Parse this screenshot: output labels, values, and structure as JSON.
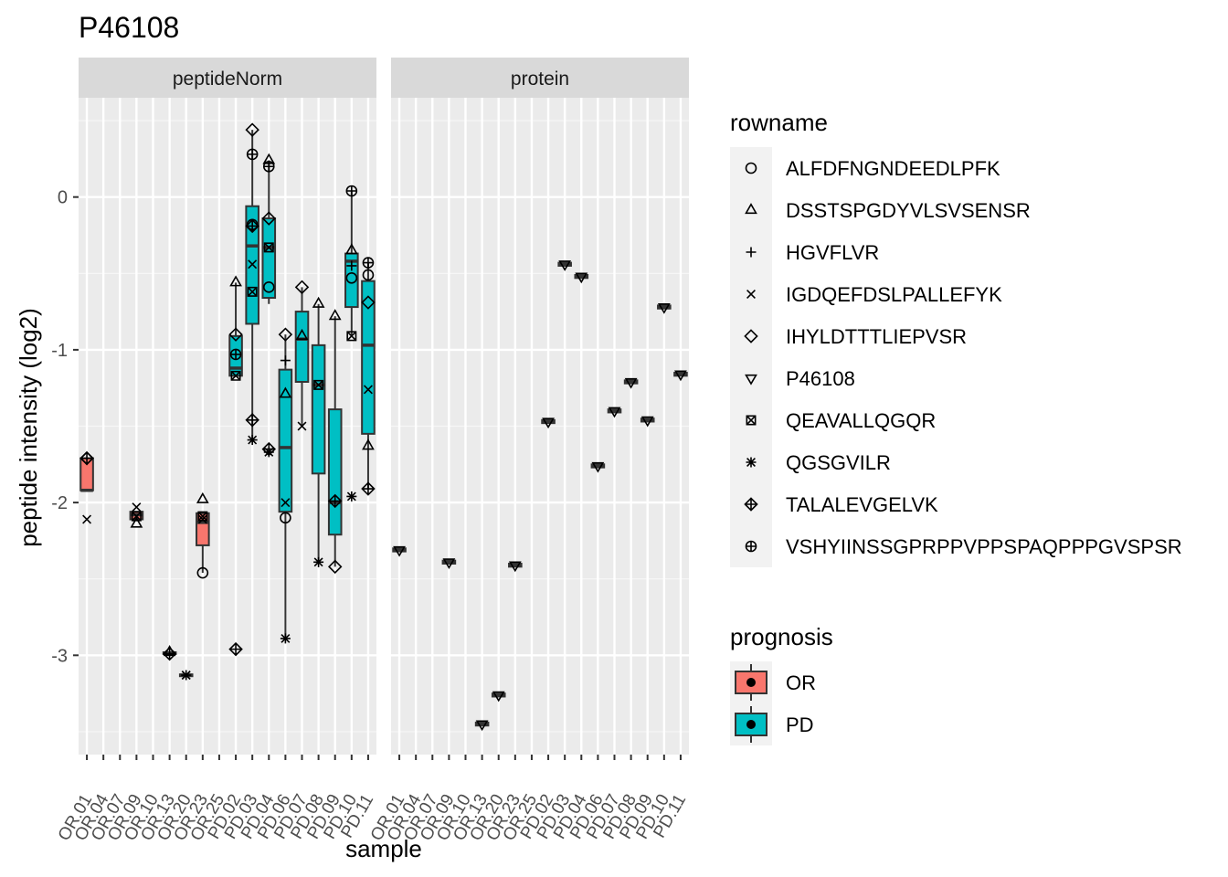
{
  "chart_data": {
    "type": "boxplot",
    "title": "P46108",
    "xlabel": "sample",
    "ylabel": "peptide intensity (log2)",
    "ylim": [
      -3.65,
      0.65
    ],
    "yticks": [
      0,
      -1,
      -2,
      -3
    ],
    "ytick_labels": [
      "0",
      "-1",
      "-2",
      "-3"
    ],
    "grid": true,
    "facets": [
      "peptideNorm",
      "protein"
    ],
    "samples": [
      "OR.01",
      "OR.04",
      "OR.07",
      "OR.09",
      "OR.10",
      "OR.13",
      "OR.20",
      "OR.23",
      "OR.25",
      "PD.02",
      "PD.03",
      "PD.04",
      "PD.06",
      "PD.07",
      "PD.08",
      "PD.09",
      "PD.10",
      "PD.11"
    ],
    "sample_prognosis": [
      "OR",
      "OR",
      "OR",
      "OR",
      "OR",
      "OR",
      "OR",
      "OR",
      "OR",
      "PD",
      "PD",
      "PD",
      "PD",
      "PD",
      "PD",
      "PD",
      "PD",
      "PD"
    ],
    "legend_placement": "right",
    "rowname_legend": {
      "title": "rowname",
      "items": [
        {
          "label": "ALFDFNGNDEEDLPFK",
          "shape": "circle"
        },
        {
          "label": "DSSTSPGDYVLSVSENSR",
          "shape": "triangle"
        },
        {
          "label": "HGVFLVR",
          "shape": "plus"
        },
        {
          "label": "IGDQEFDSLPALLEFYK",
          "shape": "cross"
        },
        {
          "label": "IHYLDTTTLIEPVSR",
          "shape": "diamond"
        },
        {
          "label": "P46108",
          "shape": "triangle-down"
        },
        {
          "label": "QEAVALLQGQR",
          "shape": "square-x"
        },
        {
          "label": "QGSGVILR",
          "shape": "asterisk"
        },
        {
          "label": "TALALEVGELVK",
          "shape": "diamond-plus"
        },
        {
          "label": "VSHYIINSSGPRPPVPPSPAQPPPGVSPSR",
          "shape": "circle-plus"
        }
      ]
    },
    "prognosis_legend": {
      "title": "prognosis",
      "items": [
        {
          "label": "OR",
          "color": "#F8766D"
        },
        {
          "label": "PD",
          "color": "#00BFC4"
        }
      ]
    },
    "panels": [
      {
        "facet": "peptideNorm",
        "boxes": [
          {
            "sample": 0,
            "prognosis": "OR",
            "q1": -1.92,
            "median": -1.92,
            "q3": -1.71,
            "lo": -1.92,
            "hi": -1.71
          },
          {
            "sample": 3,
            "prognosis": "OR",
            "q1": -2.11,
            "median": -2.08,
            "q3": -2.06,
            "lo": -2.11,
            "hi": -2.06
          },
          {
            "sample": 5,
            "prognosis": "OR",
            "q1": -2.99,
            "median": -2.985,
            "q3": -2.98,
            "lo": -2.99,
            "hi": -2.98
          },
          {
            "sample": 6,
            "prognosis": "OR",
            "q1": -3.13,
            "median": -3.13,
            "q3": -3.125,
            "lo": -3.13,
            "hi": -3.125
          },
          {
            "sample": 7,
            "prognosis": "OR",
            "q1": -2.28,
            "median": -2.13,
            "q3": -2.07,
            "lo": -2.46,
            "hi": -2.07
          },
          {
            "sample": 9,
            "prognosis": "PD",
            "q1": -1.17,
            "median": -1.12,
            "q3": -0.91,
            "lo": -1.17,
            "hi": -0.56
          },
          {
            "sample": 10,
            "prognosis": "PD",
            "q1": -0.83,
            "median": -0.32,
            "q3": -0.06,
            "lo": -1.59,
            "hi": 0.44
          },
          {
            "sample": 11,
            "prognosis": "PD",
            "q1": -0.66,
            "median": -0.33,
            "q3": -0.14,
            "lo": -0.7,
            "hi": 0.24
          },
          {
            "sample": 12,
            "prognosis": "PD",
            "q1": -2.06,
            "median": -1.64,
            "q3": -1.13,
            "lo": -2.89,
            "hi": -0.9
          },
          {
            "sample": 13,
            "prognosis": "PD",
            "q1": -1.21,
            "median": -0.93,
            "q3": -0.75,
            "lo": -1.5,
            "hi": -0.59
          },
          {
            "sample": 14,
            "prognosis": "PD",
            "q1": -1.81,
            "median": -1.23,
            "q3": -0.97,
            "lo": -2.39,
            "hi": -0.7
          },
          {
            "sample": 15,
            "prognosis": "PD",
            "q1": -2.21,
            "median": -2.0,
            "q3": -1.39,
            "lo": -2.42,
            "hi": -0.78
          },
          {
            "sample": 16,
            "prognosis": "PD",
            "q1": -0.72,
            "median": -0.42,
            "q3": -0.37,
            "lo": -0.91,
            "hi": 0.04
          },
          {
            "sample": 17,
            "prognosis": "PD",
            "q1": -1.55,
            "median": -0.97,
            "q3": -0.55,
            "lo": -1.91,
            "hi": -0.43
          }
        ],
        "points": [
          {
            "sample": 0,
            "shape": "cross",
            "y": -2.11
          },
          {
            "sample": 0,
            "shape": "diamond",
            "y": -1.71
          },
          {
            "sample": 0,
            "shape": "diamond-plus",
            "y": -1.71
          },
          {
            "sample": 3,
            "shape": "triangle",
            "y": -2.14
          },
          {
            "sample": 3,
            "shape": "cross",
            "y": -2.03
          },
          {
            "sample": 3,
            "shape": "square-x",
            "y": -2.09
          },
          {
            "sample": 5,
            "shape": "triangle",
            "y": -2.98
          },
          {
            "sample": 5,
            "shape": "diamond-plus",
            "y": -2.99
          },
          {
            "sample": 6,
            "shape": "cross",
            "y": -3.13
          },
          {
            "sample": 6,
            "shape": "asterisk",
            "y": -3.13
          },
          {
            "sample": 7,
            "shape": "triangle",
            "y": -1.98
          },
          {
            "sample": 7,
            "shape": "circle",
            "y": -2.46
          },
          {
            "sample": 7,
            "shape": "cross",
            "y": -2.11
          },
          {
            "sample": 7,
            "shape": "square-x",
            "y": -2.09
          },
          {
            "sample": 9,
            "shape": "triangle",
            "y": -0.56
          },
          {
            "sample": 9,
            "shape": "diamond",
            "y": -0.9
          },
          {
            "sample": 9,
            "shape": "circle-plus",
            "y": -1.03
          },
          {
            "sample": 9,
            "shape": "square-x",
            "y": -1.17
          },
          {
            "sample": 9,
            "shape": "diamond-plus",
            "y": -2.96
          },
          {
            "sample": 10,
            "shape": "diamond",
            "y": 0.44
          },
          {
            "sample": 10,
            "shape": "circle-plus",
            "y": 0.28
          },
          {
            "sample": 10,
            "shape": "circle",
            "y": -0.18
          },
          {
            "sample": 10,
            "shape": "diamond-plus",
            "y": -0.19
          },
          {
            "sample": 10,
            "shape": "cross",
            "y": -0.44
          },
          {
            "sample": 10,
            "shape": "square-x",
            "y": -0.62
          },
          {
            "sample": 10,
            "shape": "diamond-plus",
            "y": -1.46
          },
          {
            "sample": 10,
            "shape": "asterisk",
            "y": -1.59
          },
          {
            "sample": 11,
            "shape": "triangle",
            "y": 0.24
          },
          {
            "sample": 11,
            "shape": "circle-plus",
            "y": 0.2
          },
          {
            "sample": 11,
            "shape": "diamond",
            "y": -0.14
          },
          {
            "sample": 11,
            "shape": "square-x",
            "y": -0.33
          },
          {
            "sample": 11,
            "shape": "circle",
            "y": -0.59
          },
          {
            "sample": 11,
            "shape": "diamond-plus",
            "y": -1.65
          },
          {
            "sample": 11,
            "shape": "asterisk",
            "y": -1.67
          },
          {
            "sample": 12,
            "shape": "diamond",
            "y": -0.9
          },
          {
            "sample": 12,
            "shape": "plus",
            "y": -1.07
          },
          {
            "sample": 12,
            "shape": "triangle",
            "y": -1.29
          },
          {
            "sample": 12,
            "shape": "cross",
            "y": -2.0
          },
          {
            "sample": 12,
            "shape": "circle",
            "y": -2.1
          },
          {
            "sample": 12,
            "shape": "asterisk",
            "y": -2.89
          },
          {
            "sample": 13,
            "shape": "diamond",
            "y": -0.59
          },
          {
            "sample": 13,
            "shape": "triangle",
            "y": -0.91
          },
          {
            "sample": 13,
            "shape": "cross",
            "y": -1.5
          },
          {
            "sample": 14,
            "shape": "triangle",
            "y": -0.7
          },
          {
            "sample": 14,
            "shape": "square-x",
            "y": -1.23
          },
          {
            "sample": 14,
            "shape": "asterisk",
            "y": -2.39
          },
          {
            "sample": 15,
            "shape": "triangle",
            "y": -0.78
          },
          {
            "sample": 15,
            "shape": "diamond-plus",
            "y": -1.99
          },
          {
            "sample": 15,
            "shape": "diamond",
            "y": -2.42
          },
          {
            "sample": 16,
            "shape": "circle-plus",
            "y": 0.04
          },
          {
            "sample": 16,
            "shape": "triangle",
            "y": -0.35
          },
          {
            "sample": 16,
            "shape": "plus",
            "y": -0.45
          },
          {
            "sample": 16,
            "shape": "circle",
            "y": -0.53
          },
          {
            "sample": 16,
            "shape": "square-x",
            "y": -0.91
          },
          {
            "sample": 16,
            "shape": "asterisk",
            "y": -1.96
          },
          {
            "sample": 17,
            "shape": "circle-plus",
            "y": -0.43
          },
          {
            "sample": 17,
            "shape": "circle",
            "y": -0.51
          },
          {
            "sample": 17,
            "shape": "diamond",
            "y": -0.69
          },
          {
            "sample": 17,
            "shape": "cross",
            "y": -1.26
          },
          {
            "sample": 17,
            "shape": "triangle",
            "y": -1.63
          },
          {
            "sample": 17,
            "shape": "diamond-plus",
            "y": -1.91
          }
        ]
      },
      {
        "facet": "protein",
        "boxes": [
          {
            "sample": 0,
            "prognosis": "OR",
            "q1": -2.32,
            "median": -2.31,
            "q3": -2.3,
            "lo": -2.32,
            "hi": -2.3
          },
          {
            "sample": 3,
            "prognosis": "OR",
            "q1": -2.4,
            "median": -2.39,
            "q3": -2.38,
            "lo": -2.4,
            "hi": -2.38
          },
          {
            "sample": 5,
            "prognosis": "OR",
            "q1": -3.46,
            "median": -3.45,
            "q3": -3.44,
            "lo": -3.46,
            "hi": -3.44
          },
          {
            "sample": 6,
            "prognosis": "OR",
            "q1": -3.27,
            "median": -3.26,
            "q3": -3.25,
            "lo": -3.27,
            "hi": -3.25
          },
          {
            "sample": 7,
            "prognosis": "OR",
            "q1": -2.42,
            "median": -2.41,
            "q3": -2.4,
            "lo": -2.42,
            "hi": -2.4
          },
          {
            "sample": 9,
            "prognosis": "PD",
            "q1": -1.48,
            "median": -1.47,
            "q3": -1.46,
            "lo": -1.48,
            "hi": -1.46
          },
          {
            "sample": 10,
            "prognosis": "PD",
            "q1": -0.45,
            "median": -0.44,
            "q3": -0.43,
            "lo": -0.45,
            "hi": -0.43
          },
          {
            "sample": 11,
            "prognosis": "PD",
            "q1": -0.53,
            "median": -0.52,
            "q3": -0.51,
            "lo": -0.53,
            "hi": -0.51
          },
          {
            "sample": 12,
            "prognosis": "PD",
            "q1": -1.77,
            "median": -1.76,
            "q3": -1.75,
            "lo": -1.77,
            "hi": -1.75
          },
          {
            "sample": 13,
            "prognosis": "PD",
            "q1": -1.41,
            "median": -1.4,
            "q3": -1.39,
            "lo": -1.41,
            "hi": -1.39
          },
          {
            "sample": 14,
            "prognosis": "PD",
            "q1": -1.22,
            "median": -1.21,
            "q3": -1.2,
            "lo": -1.22,
            "hi": -1.2
          },
          {
            "sample": 15,
            "prognosis": "PD",
            "q1": -1.47,
            "median": -1.46,
            "q3": -1.45,
            "lo": -1.47,
            "hi": -1.45
          },
          {
            "sample": 16,
            "prognosis": "PD",
            "q1": -0.73,
            "median": -0.72,
            "q3": -0.71,
            "lo": -0.73,
            "hi": -0.71
          },
          {
            "sample": 17,
            "prognosis": "PD",
            "q1": -1.17,
            "median": -1.16,
            "q3": -1.15,
            "lo": -1.17,
            "hi": -1.15
          }
        ],
        "points": [
          {
            "sample": 0,
            "shape": "triangle-down",
            "y": -2.31
          },
          {
            "sample": 3,
            "shape": "triangle-down",
            "y": -2.39
          },
          {
            "sample": 5,
            "shape": "triangle-down",
            "y": -3.45
          },
          {
            "sample": 6,
            "shape": "triangle-down",
            "y": -3.26
          },
          {
            "sample": 7,
            "shape": "triangle-down",
            "y": -2.41
          },
          {
            "sample": 9,
            "shape": "triangle-down",
            "y": -1.47
          },
          {
            "sample": 10,
            "shape": "triangle-down",
            "y": -0.44
          },
          {
            "sample": 11,
            "shape": "triangle-down",
            "y": -0.52
          },
          {
            "sample": 12,
            "shape": "triangle-down",
            "y": -1.76
          },
          {
            "sample": 13,
            "shape": "triangle-down",
            "y": -1.4
          },
          {
            "sample": 14,
            "shape": "triangle-down",
            "y": -1.21
          },
          {
            "sample": 15,
            "shape": "triangle-down",
            "y": -1.46
          },
          {
            "sample": 16,
            "shape": "triangle-down",
            "y": -0.72
          },
          {
            "sample": 17,
            "shape": "triangle-down",
            "y": -1.16
          }
        ]
      }
    ]
  }
}
